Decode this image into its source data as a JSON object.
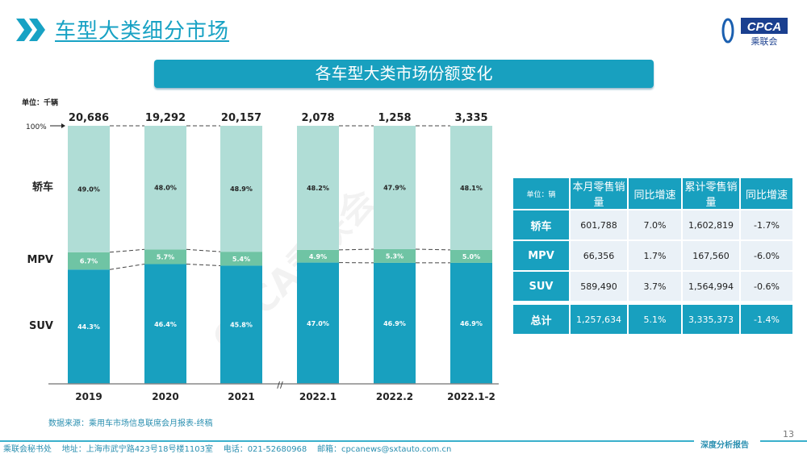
{
  "header": {
    "title": "车型大类细分市场",
    "logo_text": "CPCA",
    "logo_sub": "乘联会"
  },
  "banner": "各车型大类市场份额变化",
  "chart_data": {
    "type": "bar",
    "stacked": "percent",
    "unit_label": "单位：千辆",
    "top_marker": "100%",
    "categories": [
      "2019",
      "2020",
      "2021",
      "2022.1",
      "2022.2",
      "2022.1-2"
    ],
    "totals": [
      "20,686",
      "19,292",
      "20,157",
      "2,078",
      "1,258",
      "3,335"
    ],
    "series": [
      {
        "name": "SUV",
        "values": [
          44.3,
          46.4,
          45.8,
          47.0,
          46.9,
          46.9
        ],
        "color": "#18a0bf"
      },
      {
        "name": "MPV",
        "values": [
          6.7,
          5.7,
          5.4,
          4.9,
          5.3,
          5.0
        ],
        "color": "#6fc4a4"
      },
      {
        "name": "轿车",
        "values": [
          49.0,
          48.0,
          48.9,
          48.2,
          47.9,
          48.1
        ],
        "color": "#b0ddd6"
      }
    ],
    "axis_break": "//"
  },
  "table": {
    "headers": [
      "单位：辆",
      "本月零售销量",
      "同比增速",
      "累计零售销量",
      "同比增速"
    ],
    "rows": [
      [
        "轿车",
        "601,788",
        "7.0%",
        "1,602,819",
        "-1.7%"
      ],
      [
        "MPV",
        "66,356",
        "1.7%",
        "167,560",
        "-6.0%"
      ],
      [
        "SUV",
        "589,490",
        "3.7%",
        "1,564,994",
        "-0.6%"
      ]
    ],
    "total": [
      "总计",
      "1,257,634",
      "5.1%",
      "3,335,373",
      "-1.4%"
    ]
  },
  "watermark": "CPCA乘联会",
  "source": "数据来源：乘用车市场信息联席会月报表-终稿",
  "footer": "乘联会秘书处    地址：上海市武宁路423号18号楼1103室    电话：021-52680968    邮箱：cpcanews@sxtauto.com.cn",
  "page_number": "13",
  "report_tag": "深度分析报告"
}
